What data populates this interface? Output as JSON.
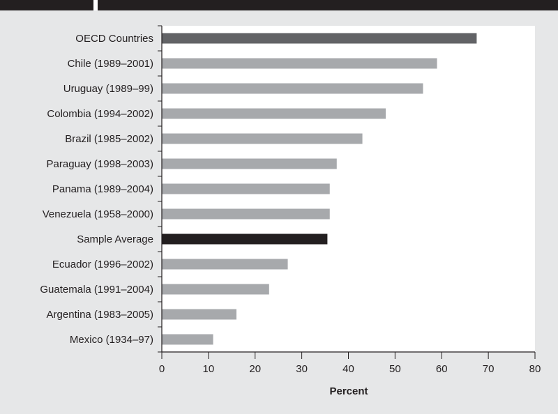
{
  "chart_data": {
    "type": "bar",
    "orientation": "horizontal",
    "categories": [
      "OECD Countries",
      "Chile (1989–2001)",
      "Uruguay (1989–99)",
      "Colombia (1994–2002)",
      "Brazil (1985–2002)",
      "Paraguay (1998–2003)",
      "Panama (1989–2004)",
      "Venezuela (1958–2000)",
      "Sample Average",
      "Ecuador (1996–2002)",
      "Guatemala (1991–2004)",
      "Argentina (1983–2005)",
      "Mexico (1934–97)"
    ],
    "values": [
      67.5,
      59,
      56,
      48,
      43,
      37.5,
      36,
      36,
      35.5,
      27,
      23,
      16,
      11
    ],
    "bar_colors": [
      "#626366",
      "#a7a9ac",
      "#a7a9ac",
      "#a7a9ac",
      "#a7a9ac",
      "#a7a9ac",
      "#a7a9ac",
      "#a7a9ac",
      "#231f20",
      "#a7a9ac",
      "#a7a9ac",
      "#a7a9ac",
      "#a7a9ac"
    ],
    "xlim": [
      0,
      80
    ],
    "xticks": [
      0,
      10,
      20,
      30,
      40,
      50,
      60,
      70,
      80
    ],
    "xlabel": "Percent",
    "ylabel": "",
    "title": "",
    "grid": false,
    "legend": "none"
  },
  "colors": {
    "background": "#e6e7e8",
    "plot_background": "#ffffff",
    "axis": "#231f20",
    "header": "#231f20"
  }
}
